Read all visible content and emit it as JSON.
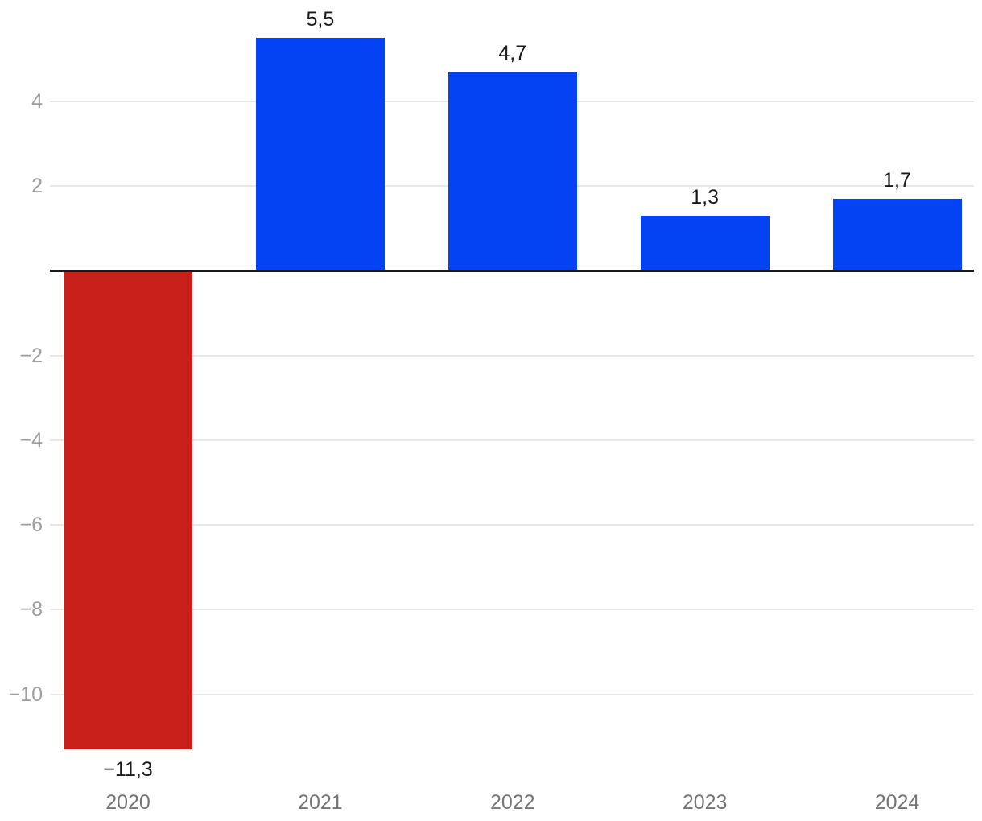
{
  "chart_data": {
    "type": "bar",
    "title": "",
    "xlabel": "",
    "ylabel": "",
    "categories": [
      "2020",
      "2021",
      "2022",
      "2023",
      "2024"
    ],
    "values": [
      -11.3,
      5.5,
      4.7,
      1.3,
      1.7
    ],
    "value_labels": [
      "−11,3",
      "5,5",
      "4,7",
      "1,3",
      "1,7"
    ],
    "bar_colors": [
      "#C9201C",
      "#0343F4",
      "#0343F4",
      "#0343F4",
      "#0343F4"
    ],
    "yticks": [
      {
        "value": 4,
        "label": "4"
      },
      {
        "value": 2,
        "label": "2"
      },
      {
        "value": -2,
        "label": "−2"
      },
      {
        "value": -4,
        "label": "−4"
      },
      {
        "value": -6,
        "label": "−6"
      },
      {
        "value": -8,
        "label": "−8"
      },
      {
        "value": -10,
        "label": "−10"
      }
    ],
    "ylim": [
      -13.0,
      6.4
    ],
    "grid": true,
    "legend": "none",
    "colors": {
      "positive_bar": "#0343F4",
      "negative_bar": "#C9201C",
      "gridline": "#E8E8E8",
      "axis_line": "#1A1A1A",
      "tick_label": "#9E9E9E",
      "category_label": "#757575",
      "value_label": "#1A1A1A",
      "background": "#FFFFFF"
    }
  }
}
